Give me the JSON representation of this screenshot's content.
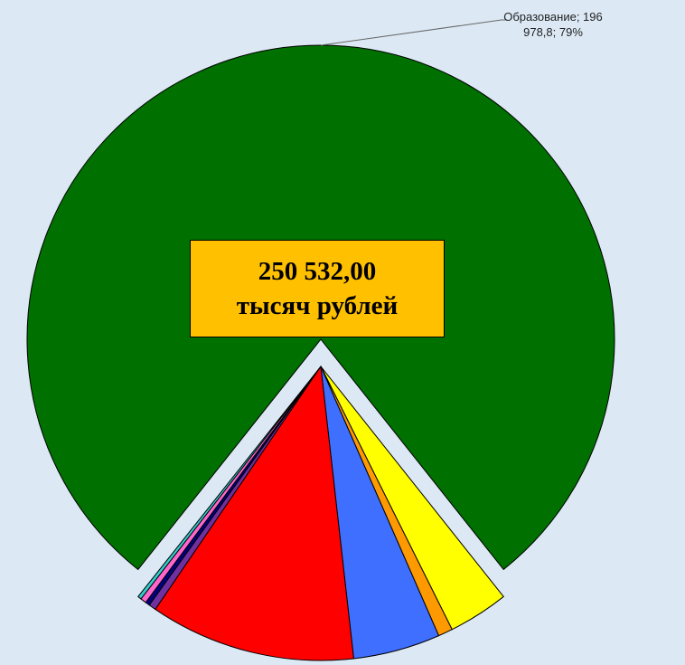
{
  "chart_data": {
    "type": "pie",
    "categories": [
      "Образование",
      null,
      null,
      null,
      null,
      null,
      null,
      null,
      null
    ],
    "values": [
      196978.8,
      8300,
      2000,
      12000,
      28353.2,
      1000,
      600,
      800,
      500
    ],
    "value_labels": [
      "Образование; 196 978,8; 79%",
      null,
      null,
      null,
      null,
      null,
      null,
      null,
      null
    ],
    "colors": [
      "#007000",
      "#ffff00",
      "#ff9900",
      "#3f6fff",
      "#ff0000",
      "#7030a0",
      "#000080",
      "#ff66cc",
      "#33cccc"
    ],
    "annotation": [
      "250 532,00",
      "тысяч рублей"
    ]
  }
}
